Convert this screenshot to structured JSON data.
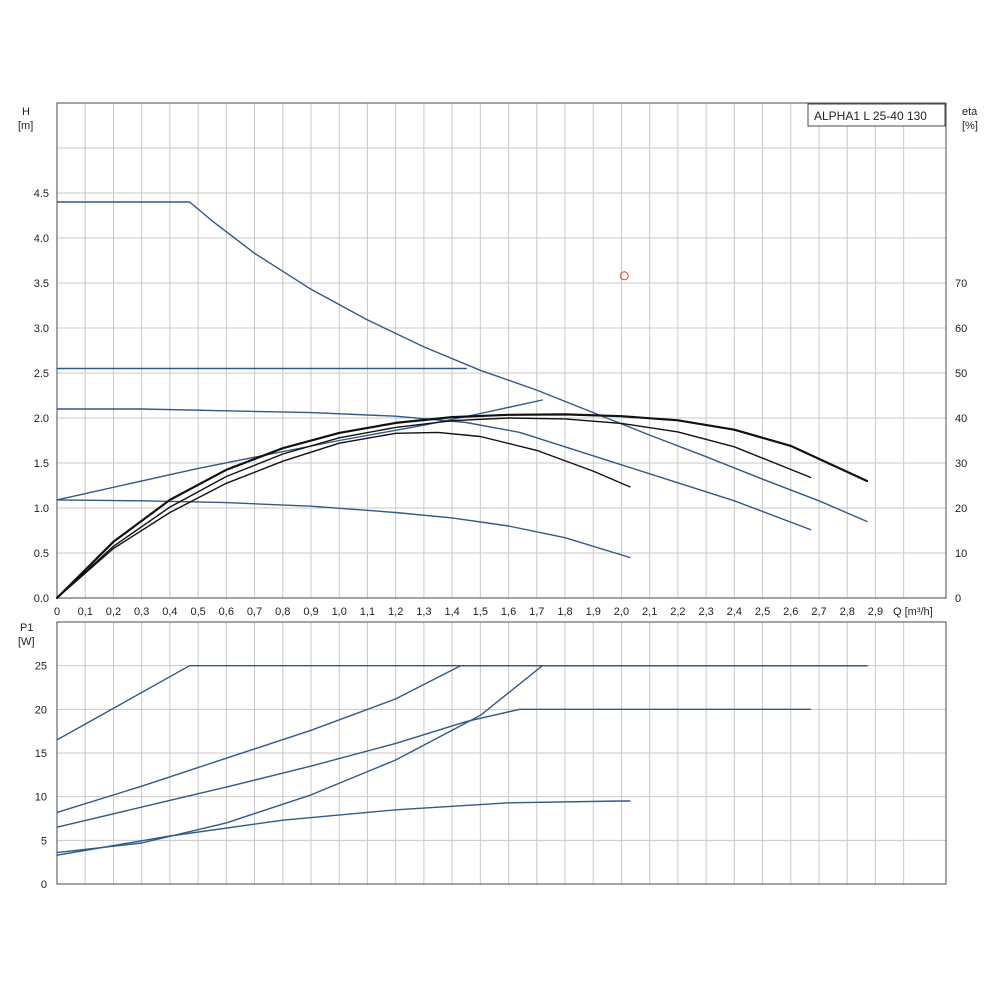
{
  "chart_data": [
    {
      "type": "line",
      "title": "ALPHA1 L 25-40 130",
      "xlabel": "Q [m³/h]",
      "ylabel": "H\n[m]",
      "ylabel_right": "eta\n[%]",
      "xlim": [
        0,
        3.15
      ],
      "ylim": [
        0,
        5.5
      ],
      "ylim_right": [
        0,
        110
      ],
      "x_ticks": [
        "0",
        "0,1",
        "0,2",
        "0,3",
        "0,4",
        "0,5",
        "0,6",
        "0,7",
        "0,8",
        "0,9",
        "1,0",
        "1,1",
        "1,2",
        "1,3",
        "1,4",
        "1,5",
        "1,6",
        "1,7",
        "1,8",
        "1,9",
        "2,0",
        "2,1",
        "2,2",
        "2,3",
        "2,4",
        "2,5",
        "2,6",
        "2,7",
        "2,8",
        "2,9"
      ],
      "y_ticks": [
        "0.0",
        "0.5",
        "1.0",
        "1.5",
        "2.0",
        "2.5",
        "3.0",
        "3.5",
        "4.0",
        "4.5"
      ],
      "y_ticks_right": [
        "0",
        "10",
        "20",
        "30",
        "40",
        "50",
        "60",
        "70"
      ],
      "grid": true,
      "series_color": "#2f5a8a",
      "eta_color": "#111111",
      "series": [
        {
          "axis": "H",
          "x": [
            0,
            0.47,
            0.55,
            0.7,
            0.9,
            1.1,
            1.3,
            1.5,
            1.7,
            1.9,
            2.1,
            2.3,
            2.5,
            2.7,
            2.87
          ],
          "y": [
            4.4,
            4.4,
            4.19,
            3.83,
            3.43,
            3.09,
            2.79,
            2.53,
            2.31,
            2.06,
            1.81,
            1.57,
            1.32,
            1.08,
            0.85
          ]
        },
        {
          "axis": "H",
          "x": [
            0,
            1.45
          ],
          "y": [
            2.55,
            2.55
          ]
        },
        {
          "axis": "H",
          "x": [
            0,
            0.3,
            0.6,
            0.9,
            1.2,
            1.45,
            1.64,
            1.8,
            2.0,
            2.2,
            2.4,
            2.67
          ],
          "y": [
            2.1,
            2.1,
            2.08,
            2.06,
            2.02,
            1.95,
            1.84,
            1.68,
            1.48,
            1.28,
            1.08,
            0.76
          ]
        },
        {
          "axis": "H",
          "x": [
            0,
            0.3,
            0.6,
            0.9,
            1.2,
            1.4,
            1.6,
            1.8,
            2.03
          ],
          "y": [
            1.09,
            1.08,
            1.06,
            1.02,
            0.95,
            0.89,
            0.8,
            0.67,
            0.45
          ]
        },
        {
          "axis": "H",
          "x": [
            0,
            0.5,
            1.0,
            1.3,
            1.5,
            1.72
          ],
          "y": [
            1.09,
            1.44,
            1.75,
            1.92,
            2.05,
            2.2
          ]
        },
        {
          "axis": "eta",
          "x": [
            0,
            0.2,
            0.4,
            0.6,
            0.8,
            1.0,
            1.2,
            1.4,
            1.6,
            1.8,
            2.0,
            2.2,
            2.4,
            2.6,
            2.87
          ],
          "y": [
            0,
            12.5,
            21.8,
            28.5,
            33.3,
            36.7,
            38.9,
            40.2,
            40.7,
            40.8,
            40.4,
            39.5,
            37.4,
            33.8,
            26.0
          ]
        },
        {
          "axis": "eta",
          "x": [
            0,
            0.2,
            0.4,
            0.6,
            0.8,
            1.0,
            1.2,
            1.4,
            1.6,
            1.8,
            2.0,
            2.2,
            2.4,
            2.67
          ],
          "y": [
            0,
            11.5,
            20.2,
            27.0,
            32.0,
            35.6,
            37.9,
            39.4,
            40.0,
            39.8,
            38.8,
            36.9,
            33.6,
            26.8
          ]
        },
        {
          "axis": "eta",
          "x": [
            0,
            0.2,
            0.4,
            0.6,
            0.8,
            1.0,
            1.2,
            1.35,
            1.5,
            1.7,
            1.9,
            2.03
          ],
          "y": [
            0,
            11.0,
            19.0,
            25.5,
            30.4,
            34.4,
            36.6,
            36.8,
            35.9,
            32.8,
            28.2,
            24.7
          ]
        }
      ],
      "marker": {
        "x": 2.01,
        "y": 3.58,
        "color": "#dd4444"
      }
    },
    {
      "type": "line",
      "title": "",
      "xlabel": "",
      "ylabel": "P1\n[W]",
      "xlim": [
        0,
        3.15
      ],
      "ylim": [
        0,
        30
      ],
      "y_ticks": [
        "0",
        "5",
        "10",
        "15",
        "20",
        "25"
      ],
      "grid": true,
      "series_color": "#2f5a8a",
      "series": [
        {
          "x": [
            0,
            0.47,
            2.87
          ],
          "y": [
            16.5,
            25,
            25
          ]
        },
        {
          "x": [
            0,
            0.3,
            0.6,
            0.9,
            1.2,
            1.43,
            2.87
          ],
          "y": [
            8.2,
            11.2,
            14.4,
            17.6,
            21.2,
            25,
            25
          ]
        },
        {
          "x": [
            0,
            0.3,
            0.6,
            0.9,
            1.2,
            1.45,
            1.64,
            2.67
          ],
          "y": [
            6.5,
            8.8,
            11.1,
            13.5,
            16.1,
            18.6,
            20,
            20
          ]
        },
        {
          "x": [
            0,
            0.3,
            0.6,
            0.9,
            1.2,
            1.5,
            1.72,
            2.87
          ],
          "y": [
            3.6,
            4.7,
            7.0,
            10.2,
            14.2,
            19.3,
            25,
            25
          ]
        },
        {
          "x": [
            0,
            0.4,
            0.8,
            1.2,
            1.6,
            2.0,
            2.03
          ],
          "y": [
            3.3,
            5.5,
            7.3,
            8.5,
            9.3,
            9.5,
            9.5
          ]
        }
      ]
    }
  ]
}
